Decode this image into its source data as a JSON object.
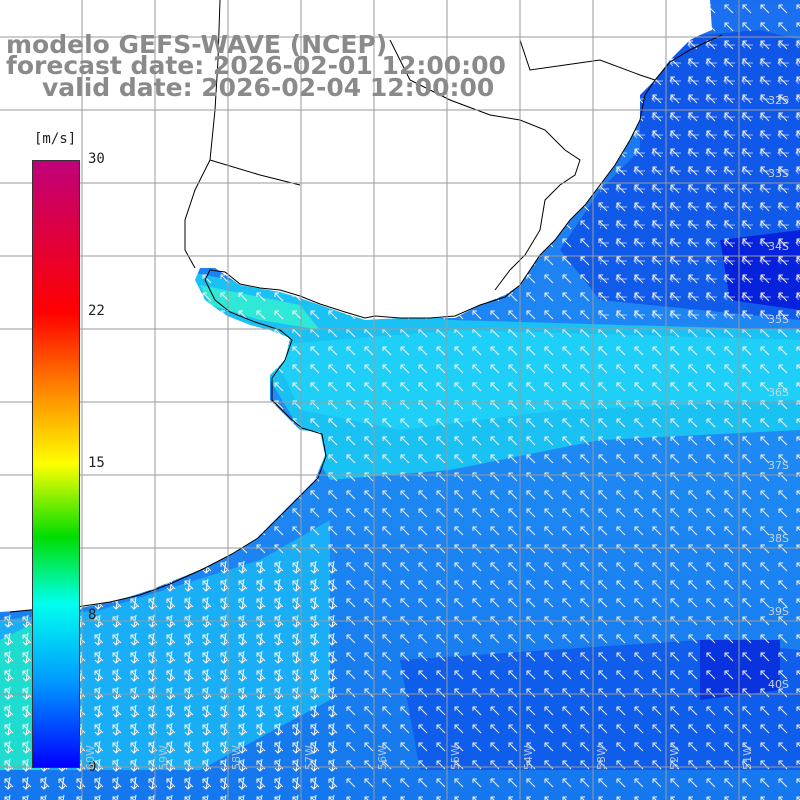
{
  "title": {
    "line1": "modelo GEFS-WAVE (NCEP)",
    "line2": "forecast date: 2026-02-01 12:00:00",
    "line3": "valid date: 2026-02-04 12:00:00"
  },
  "colorbar": {
    "unit": "[m/s]",
    "ticks": [
      "30",
      "22",
      "15",
      "8",
      "0"
    ],
    "tick_values": [
      30,
      22,
      15,
      8,
      0
    ],
    "min": 0,
    "max": 30,
    "colors": [
      "#0000ff",
      "#0099ff",
      "#00ffee",
      "#00dd00",
      "#ffff00",
      "#ff8800",
      "#ff0000",
      "#c0007a"
    ]
  },
  "map": {
    "variable": "wind speed and direction",
    "region": "Rio de la Plata / South Atlantic",
    "lat_labels": [
      "32S",
      "33S",
      "34S",
      "35S",
      "36S",
      "37S",
      "38S",
      "39S",
      "40S"
    ],
    "lon_labels": [
      "60W",
      "59W",
      "58W",
      "57W",
      "56W",
      "55W",
      "54W",
      "53W",
      "52W",
      "51W"
    ],
    "land_color": "#ffffff",
    "arrow_color": "#ffffff",
    "grid_color": "#999999",
    "coast_color": "#000000"
  }
}
